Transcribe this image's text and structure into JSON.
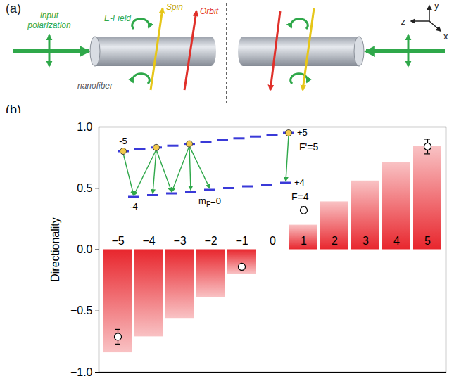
{
  "chart_data": {
    "type": "bar",
    "panel_label": "(b)",
    "ylabel": "Directionality",
    "categories": [
      "−5",
      "−4",
      "−3",
      "−2",
      "−1",
      "0",
      "1",
      "2",
      "3",
      "4",
      "5"
    ],
    "values": [
      -0.84,
      -0.71,
      -0.56,
      -0.39,
      -0.2,
      0,
      0.2,
      0.39,
      0.56,
      0.71,
      0.84
    ],
    "color": "#e8262d",
    "ylim": [
      -1,
      1
    ],
    "yticks": [
      {
        "value": -1,
        "label": "−1.0"
      },
      {
        "value": -0.5,
        "label": "−0.5"
      },
      {
        "value": 0,
        "label": "0.0"
      },
      {
        "value": 0.5,
        "label": "0.5"
      },
      {
        "value": 1,
        "label": "1.0"
      }
    ],
    "measured": {
      "categories": [
        "−5",
        "−1",
        "1",
        "5"
      ],
      "values": [
        -0.71,
        -0.14,
        0.32,
        0.84
      ],
      "errors": [
        0.06,
        0.02,
        0.03,
        0.06
      ],
      "marker": "circle"
    },
    "inset": {
      "upper": {
        "label": "F'=5",
        "m_range": [
          -5,
          5
        ],
        "populated": [
          -5,
          -3,
          -1,
          5
        ],
        "end_labels": [
          "-5",
          "+5"
        ]
      },
      "lower": {
        "label": "F=4",
        "m_range": [
          -4,
          4
        ],
        "end_labels": [
          "-4",
          "+4"
        ]
      },
      "m_label": {
        "symbol": "m",
        "subscript": "F",
        "suffix": "=0",
        "value": 0
      }
    }
  },
  "diagram": {
    "label": "(a)",
    "input_polarization": [
      "input",
      "polarization"
    ],
    "e_field": "E-Field",
    "spin": "Spin",
    "orbit": "Orbit",
    "fiber": "nanofiber",
    "axes": [
      "y",
      "z",
      "x"
    ]
  }
}
